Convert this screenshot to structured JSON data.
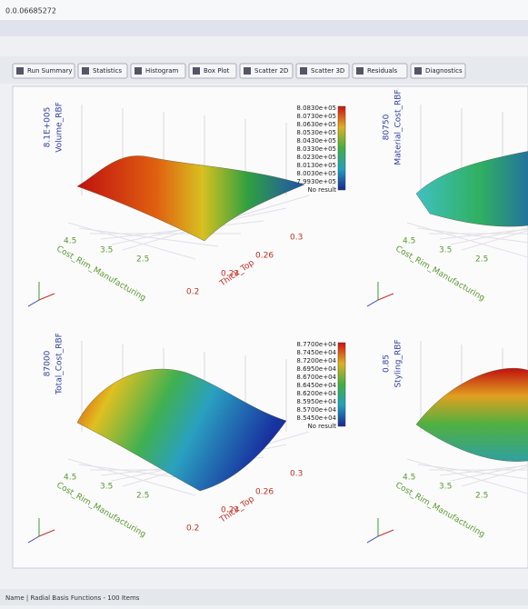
{
  "window": {
    "title": "0.0.06685272",
    "status": "Name | Radial Basis Functions - 100 Items"
  },
  "toolbar": [
    "Run Summary",
    "Statistics",
    "Histogram",
    "Box Plot",
    "Scatter 2D",
    "Scatter 3D",
    "Residuals",
    "Diagnostics"
  ],
  "plots": [
    {
      "z_value": "8.1E+005",
      "z_label": "Volume_RBF",
      "x_label": "Cost_Rim_Manufacturing",
      "x_ticks": [
        "4.5",
        "3.5",
        "2.5"
      ],
      "y_label": "Thick_Top",
      "y_ticks": [
        "0.2",
        "0.23",
        "0.26",
        "0.3"
      ],
      "colorbar": [
        "8.0830e+05",
        "8.0730e+05",
        "8.0630e+05",
        "8.0530e+05",
        "8.0430e+05",
        "8.0330e+05",
        "8.0230e+05",
        "8.0130e+05",
        "8.0030e+05",
        "7.9930e+05",
        "No result"
      ]
    },
    {
      "z_value": "80750",
      "z_label": "Material_Cost_RBF",
      "x_label": "Cost_Rim_Manufacturing",
      "x_ticks": [
        "4.5",
        "3.5",
        "2.5"
      ]
    },
    {
      "z_value": "87000",
      "z_label": "Total_Cost_RBF",
      "x_label": "Cost_Rim_Manufacturing",
      "x_ticks": [
        "4.5",
        "3.5",
        "2.5"
      ],
      "y_label": "Thick_Top",
      "y_ticks": [
        "0.2",
        "0.23",
        "0.26",
        "0.3"
      ],
      "colorbar": [
        "8.7700e+04",
        "8.7450e+04",
        "8.7200e+04",
        "8.6950e+04",
        "8.6700e+04",
        "8.6450e+04",
        "8.6200e+04",
        "8.5950e+04",
        "8.5700e+04",
        "8.5450e+04",
        "No result"
      ]
    },
    {
      "z_value": "0.85",
      "z_label": "Styling_RBF",
      "x_label": "Cost_Rim_Manufacturing",
      "x_ticks": [
        "4.5",
        "3.5",
        "2.5"
      ]
    }
  ]
}
